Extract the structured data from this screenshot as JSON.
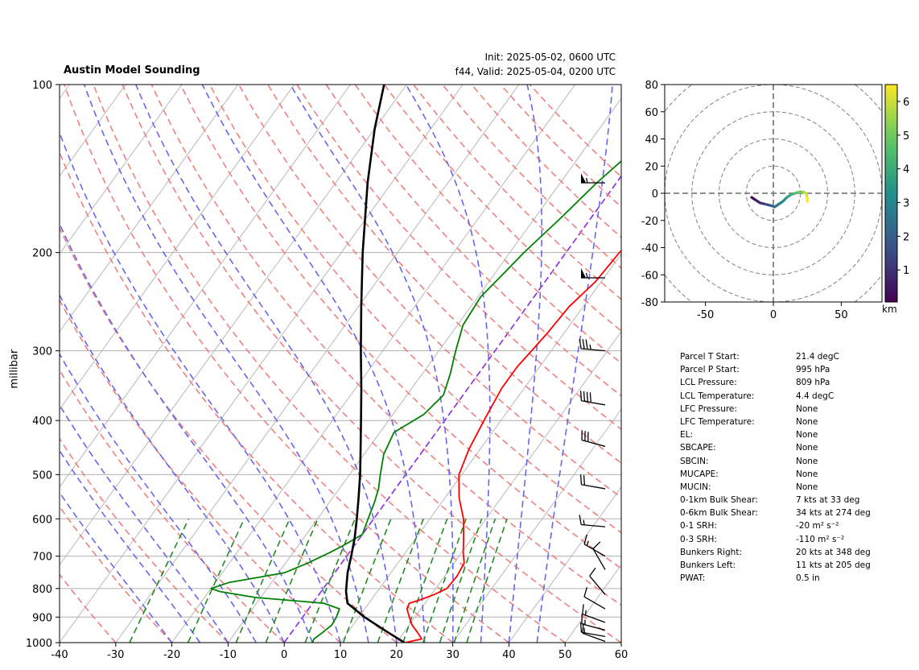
{
  "header": {
    "title": "Austin Model Sounding",
    "init": "Init: 2025-05-02, 0600 UTC",
    "valid": "f44, Valid: 2025-05-04, 0200 UTC"
  },
  "colors": {
    "temperature": "#ff0000",
    "dewpoint": "#008000",
    "parcel": "#000000",
    "dry_adiabat": "#f08080",
    "moist_adiabat": "#6666ee",
    "mixing_ratio": "#228b22",
    "isotherm_zero": "#8a2be2"
  },
  "chart_data": [
    {
      "type": "line",
      "name": "skew-t",
      "ylabel": "millibar",
      "y_scale": "log",
      "ylim": [
        1000,
        100
      ],
      "xlim": [
        -40,
        60
      ],
      "x_ticks": [
        "-40",
        "-30",
        "-20",
        "-10",
        "0",
        "10",
        "20",
        "30",
        "40",
        "50",
        "60"
      ],
      "y_ticks": [
        "100",
        "200",
        "300",
        "400",
        "500",
        "600",
        "700",
        "800",
        "900",
        "1000"
      ],
      "grid": true,
      "series": [
        {
          "key": "temperature",
          "points": [
            [
              1000,
              21.5
            ],
            [
              985,
              24
            ],
            [
              960,
              22.5
            ],
            [
              930,
              20.5
            ],
            [
              900,
              19
            ],
            [
              870,
              17.5
            ],
            [
              850,
              17.2
            ],
            [
              840,
              18.5
            ],
            [
              820,
              20.5
            ],
            [
              800,
              22
            ],
            [
              760,
              22.2
            ],
            [
              720,
              21.8
            ],
            [
              690,
              20.3
            ],
            [
              650,
              18.5
            ],
            [
              600,
              16
            ],
            [
              550,
              12.5
            ],
            [
              500,
              9.5
            ],
            [
              450,
              8
            ],
            [
              400,
              7
            ],
            [
              350,
              6
            ],
            [
              320,
              6
            ],
            [
              300,
              6.5
            ],
            [
              280,
              7
            ],
            [
              250,
              7.5
            ],
            [
              225,
              9
            ],
            [
              200,
              9.5
            ],
            [
              180,
              11
            ],
            [
              160,
              13
            ],
            [
              145,
              13
            ],
            [
              130,
              13.5
            ],
            [
              115,
              15.5
            ],
            [
              100,
              17
            ]
          ]
        },
        {
          "key": "dewpoint",
          "points": [
            [
              1000,
              5
            ],
            [
              985,
              4.8
            ],
            [
              960,
              5.5
            ],
            [
              930,
              6.2
            ],
            [
              900,
              6
            ],
            [
              870,
              5.5
            ],
            [
              850,
              2
            ],
            [
              830,
              -11
            ],
            [
              810,
              -18
            ],
            [
              800,
              -20
            ],
            [
              780,
              -17.5
            ],
            [
              750,
              -9
            ],
            [
              720,
              -6
            ],
            [
              690,
              -3.5
            ],
            [
              670,
              -2
            ],
            [
              640,
              0
            ],
            [
              600,
              -1
            ],
            [
              560,
              -2
            ],
            [
              530,
              -3
            ],
            [
              500,
              -4.5
            ],
            [
              460,
              -6.5
            ],
            [
              420,
              -7.5
            ],
            [
              390,
              -4.5
            ],
            [
              360,
              -3.5
            ],
            [
              330,
              -5
            ],
            [
              300,
              -7
            ],
            [
              270,
              -9
            ],
            [
              240,
              -9.5
            ],
            [
              220,
              -8.5
            ],
            [
              200,
              -7.5
            ],
            [
              175,
              -5.5
            ],
            [
              150,
              -3.5
            ],
            [
              130,
              -1
            ],
            [
              115,
              3
            ],
            [
              100,
              7
            ]
          ]
        },
        {
          "key": "parcel",
          "points": [
            [
              1000,
              21.4
            ],
            [
              960,
              17.3
            ],
            [
              900,
              11
            ],
            [
              850,
              6.2
            ],
            [
              809,
              4.4
            ],
            [
              750,
              2.3
            ],
            [
              700,
              0.8
            ],
            [
              650,
              -0.9
            ],
            [
              600,
              -3
            ],
            [
              550,
              -5.4
            ],
            [
              500,
              -8.1
            ],
            [
              450,
              -11.3
            ],
            [
              400,
              -14.9
            ],
            [
              350,
              -19
            ],
            [
              300,
              -23.9
            ],
            [
              250,
              -29.5
            ],
            [
              200,
              -36.2
            ],
            [
              150,
              -44.3
            ],
            [
              120,
              -50
            ],
            [
              100,
              -54
            ]
          ]
        }
      ]
    },
    {
      "type": "line",
      "name": "hodograph",
      "xlim": [
        -80,
        80
      ],
      "ylim": [
        -80,
        80
      ],
      "x_ticks": [
        "-50",
        "0",
        "50"
      ],
      "y_ticks": [
        "80",
        "60",
        "40",
        "20",
        "0",
        "-20",
        "-40",
        "-60",
        "-80"
      ],
      "colorbar_ticks": [
        "1",
        "2",
        "3",
        "4",
        "5",
        "6"
      ],
      "colorbar_label": "km",
      "points": [
        [
          -16,
          -3
        ],
        [
          -13,
          -5
        ],
        [
          -10,
          -7
        ],
        [
          -6,
          -8
        ],
        [
          -2,
          -9
        ],
        [
          1,
          -10
        ],
        [
          4,
          -8
        ],
        [
          7,
          -6
        ],
        [
          10,
          -3
        ],
        [
          13,
          -1
        ],
        [
          16,
          0
        ],
        [
          19,
          1
        ],
        [
          22,
          1
        ],
        [
          24,
          0
        ],
        [
          25,
          -3
        ],
        [
          25,
          -6
        ]
      ]
    }
  ],
  "wind_barbs": [
    {
      "p": 150,
      "speed": 55,
      "dir": 270
    },
    {
      "p": 222,
      "speed": 55,
      "dir": 270
    },
    {
      "p": 300,
      "speed": 35,
      "dir": 275
    },
    {
      "p": 375,
      "speed": 40,
      "dir": 280
    },
    {
      "p": 445,
      "speed": 30,
      "dir": 285
    },
    {
      "p": 530,
      "speed": 20,
      "dir": 280
    },
    {
      "p": 620,
      "speed": 15,
      "dir": 275
    },
    {
      "p": 700,
      "speed": 15,
      "dir": 300
    },
    {
      "p": 740,
      "speed": 10,
      "dir": 330
    },
    {
      "p": 820,
      "speed": 10,
      "dir": 320
    },
    {
      "p": 870,
      "speed": 10,
      "dir": 300
    },
    {
      "p": 920,
      "speed": 15,
      "dir": 290
    },
    {
      "p": 950,
      "speed": 15,
      "dir": 285
    },
    {
      "p": 975,
      "speed": 15,
      "dir": 280
    },
    {
      "p": 995,
      "speed": 10,
      "dir": 290
    }
  ],
  "stats": [
    {
      "label": "Parcel T Start:",
      "value": "21.4 degC"
    },
    {
      "label": "Parcel P Start:",
      "value": "995 hPa"
    },
    {
      "label": "LCL Pressure:",
      "value": "809 hPa"
    },
    {
      "label": "LCL Temperature:",
      "value": "4.4 degC"
    },
    {
      "label": "LFC Pressure:",
      "value": "None"
    },
    {
      "label": "LFC Temperature:",
      "value": "None"
    },
    {
      "label": "EL:",
      "value": "None"
    },
    {
      "label": "SBCAPE:",
      "value": "None"
    },
    {
      "label": "SBCIN:",
      "value": "None"
    },
    {
      "label": "MUCAPE:",
      "value": "None"
    },
    {
      "label": "MUCIN:",
      "value": "None"
    },
    {
      "label": "0-1km Bulk Shear:",
      "value": "7 kts at 33 deg"
    },
    {
      "label": "0-6km Bulk Shear:",
      "value": "34 kts at 274 deg"
    },
    {
      "label": "0-1 SRH:",
      "value": "-20 m² s⁻²"
    },
    {
      "label": "0-3 SRH:",
      "value": "-110 m² s⁻²"
    },
    {
      "label": "Bunkers Right:",
      "value": "20 kts at 348 deg"
    },
    {
      "label": "Bunkers Left:",
      "value": "11 kts at 205 deg"
    },
    {
      "label": "PWAT:",
      "value": "0.5 in"
    }
  ]
}
